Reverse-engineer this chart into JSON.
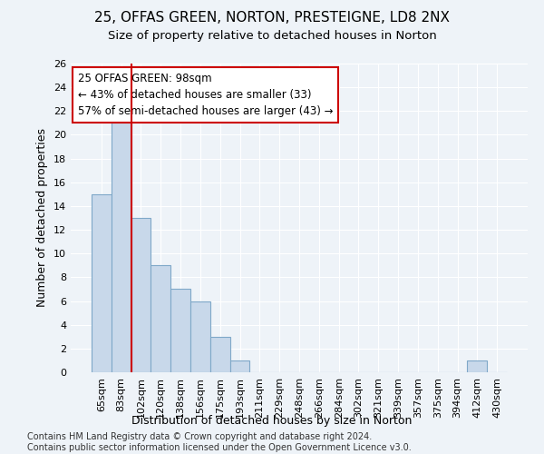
{
  "title1": "25, OFFAS GREEN, NORTON, PRESTEIGNE, LD8 2NX",
  "title2": "Size of property relative to detached houses in Norton",
  "xlabel": "Distribution of detached houses by size in Norton",
  "ylabel": "Number of detached properties",
  "categories": [
    "65sqm",
    "83sqm",
    "102sqm",
    "120sqm",
    "138sqm",
    "156sqm",
    "175sqm",
    "193sqm",
    "211sqm",
    "229sqm",
    "248sqm",
    "266sqm",
    "284sqm",
    "302sqm",
    "321sqm",
    "339sqm",
    "357sqm",
    "375sqm",
    "394sqm",
    "412sqm",
    "430sqm"
  ],
  "values": [
    15,
    22,
    13,
    9,
    7,
    6,
    3,
    1,
    0,
    0,
    0,
    0,
    0,
    0,
    0,
    0,
    0,
    0,
    0,
    1,
    0
  ],
  "bar_color": "#c8d8ea",
  "bar_edge_color": "#7fa8c8",
  "annotation_box_color": "#cc0000",
  "vline_x": 1.5,
  "vline_color": "#cc0000",
  "annotation_line1": "25 OFFAS GREEN: 98sqm",
  "annotation_line2": "← 43% of detached houses are smaller (33)",
  "annotation_line3": "57% of semi-detached houses are larger (43) →",
  "ylim": [
    0,
    26
  ],
  "yticks": [
    0,
    2,
    4,
    6,
    8,
    10,
    12,
    14,
    16,
    18,
    20,
    22,
    24,
    26
  ],
  "footer_text": "Contains HM Land Registry data © Crown copyright and database right 2024.\nContains public sector information licensed under the Open Government Licence v3.0.",
  "background_color": "#eef3f8",
  "plot_background_color": "#eef3f8",
  "title1_fontsize": 11,
  "title2_fontsize": 9.5,
  "xlabel_fontsize": 9,
  "ylabel_fontsize": 9,
  "footer_fontsize": 7,
  "tick_fontsize": 8,
  "annot_fontsize": 8.5
}
